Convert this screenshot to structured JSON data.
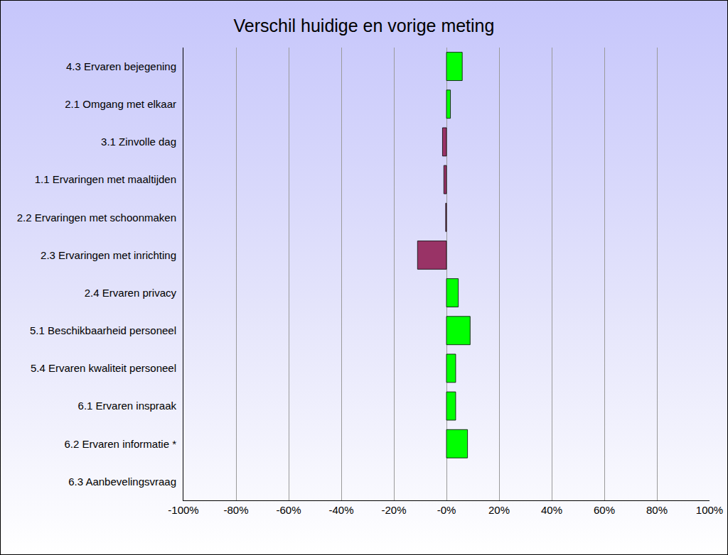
{
  "chart_data": {
    "type": "bar",
    "orientation": "horizontal",
    "title": "Verschil huidige en vorige meting",
    "categories": [
      "4.3 Ervaren bejegening",
      "2.1 Omgang met elkaar",
      "3.1 Zinvolle dag",
      "1.1 Ervaringen met maaltijden",
      "2.2 Ervaringen met schoonmaken",
      "2.3 Ervaringen met inrichting",
      "2.4 Ervaren privacy",
      "5.1 Beschikbaarheid personeel",
      "5.4 Ervaren kwaliteit personeel",
      "6.1 Ervaren inspraak",
      "6.2 Ervaren informatie *",
      "6.3 Aanbevelingsvraag"
    ],
    "values": [
      6,
      1.5,
      -1.5,
      -1,
      -0.3,
      -11,
      4.5,
      9,
      3.5,
      3.5,
      8,
      null
    ],
    "colors": [
      "#00ff00",
      "#00ff00",
      "#993366",
      "#993366",
      "#993366",
      "#993366",
      "#00ff00",
      "#00ff00",
      "#00ff00",
      "#00ff00",
      "#00ff00",
      "#00ff00"
    ],
    "xlim": [
      -100,
      100
    ],
    "xticks": [
      {
        "value": -100,
        "label": "-100%"
      },
      {
        "value": -80,
        "label": "-80%"
      },
      {
        "value": -60,
        "label": "-60%"
      },
      {
        "value": -40,
        "label": "-40%"
      },
      {
        "value": -20,
        "label": "-20%"
      },
      {
        "value": 0,
        "label": "-0%"
      },
      {
        "value": 20,
        "label": "20%"
      },
      {
        "value": 40,
        "label": "40%"
      },
      {
        "value": 60,
        "label": "60%"
      },
      {
        "value": 80,
        "label": "80%"
      },
      {
        "value": 100,
        "label": "100%"
      }
    ],
    "grid": true
  }
}
